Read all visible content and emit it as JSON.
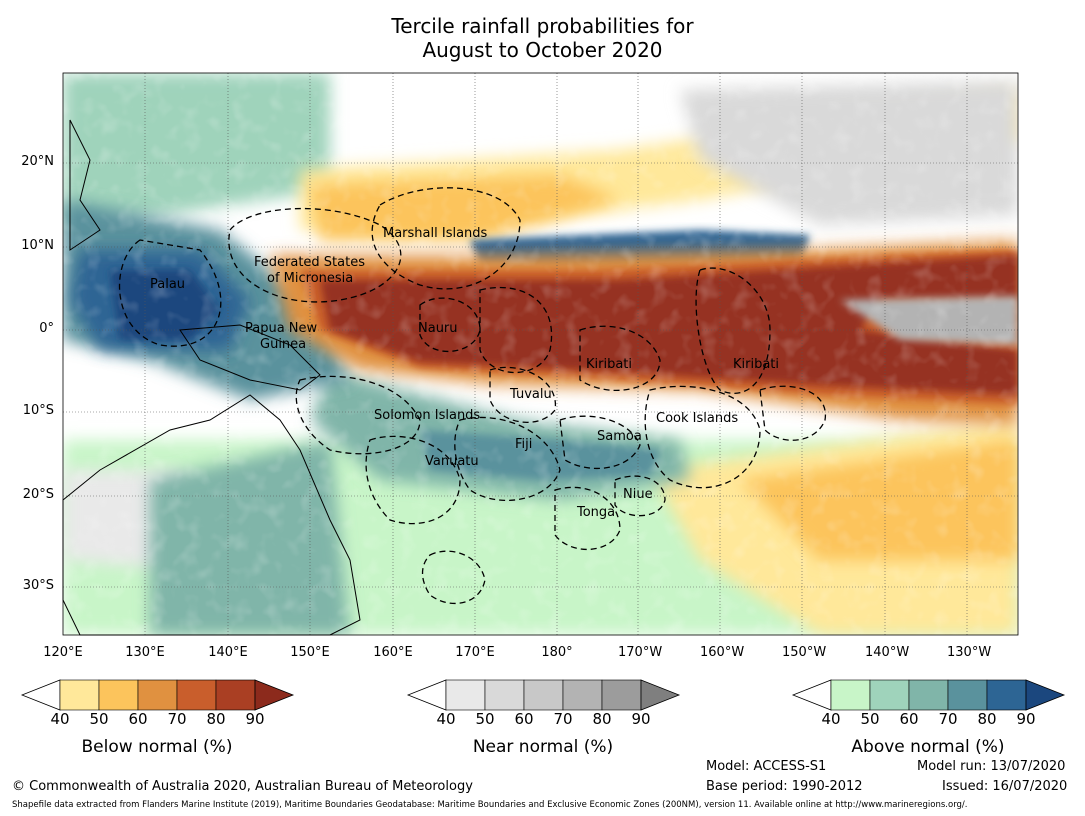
{
  "title": {
    "line1": "Tercile rainfall probabilities for",
    "line2": "August to October 2020"
  },
  "axes": {
    "lon_ticks": [
      "120°E",
      "130°E",
      "140°E",
      "150°E",
      "160°E",
      "170°E",
      "180°",
      "170°W",
      "160°W",
      "150°W",
      "140°W",
      "130°W"
    ],
    "lat_ticks": [
      "20°N",
      "10°N",
      "0°",
      "10°S",
      "20°S",
      "30°S"
    ]
  },
  "regions": [
    "Palau",
    "Federated States",
    "of Micronesia",
    "Marshall Islands",
    "Papua New",
    "Guinea",
    "Nauru",
    "Kiribati",
    "Kiribati",
    "Tuvalu",
    "Solomon Islands",
    "Fiji",
    "Samoa",
    "Cook Islands",
    "Vanuatu",
    "Niue",
    "Tonga"
  ],
  "colorbars": [
    {
      "title": "Below normal (%)",
      "ticks": [
        "40",
        "50",
        "60",
        "70",
        "80",
        "90"
      ],
      "colors": [
        "#ffffff",
        "#ffe89a",
        "#fcc45c",
        "#e09140",
        "#c95e2c",
        "#aa3f23",
        "#8c2a1c"
      ]
    },
    {
      "title": "Near normal (%)",
      "ticks": [
        "40",
        "50",
        "60",
        "70",
        "80",
        "90"
      ],
      "colors": [
        "#ffffff",
        "#e9e9e9",
        "#d9d9d9",
        "#c8c8c8",
        "#b3b3b3",
        "#9c9c9c",
        "#7f7f7f"
      ]
    },
    {
      "title": "Above normal (%)",
      "ticks": [
        "40",
        "50",
        "60",
        "70",
        "80",
        "90"
      ],
      "colors": [
        "#ffffff",
        "#c8f5c8",
        "#9fd3bb",
        "#80b5a9",
        "#5a929d",
        "#2d6594",
        "#1b477e"
      ]
    }
  ],
  "footer": {
    "copyright": "© Commonwealth of Australia 2020, Australian Bureau of Meteorology",
    "model": "Model: ACCESS-S1",
    "base_period": "Base period: 1990-2012",
    "model_run": "Model run: 13/07/2020",
    "issued": "Issued: 16/07/2020",
    "shapefile": "Shapefile data extracted from Flanders Marine Institute (2019), Maritime Boundaries Geodatabase: Maritime Boundaries and Exclusive Economic Zones (200NM), version 11. Available online at http://www.marineregions.org/."
  }
}
